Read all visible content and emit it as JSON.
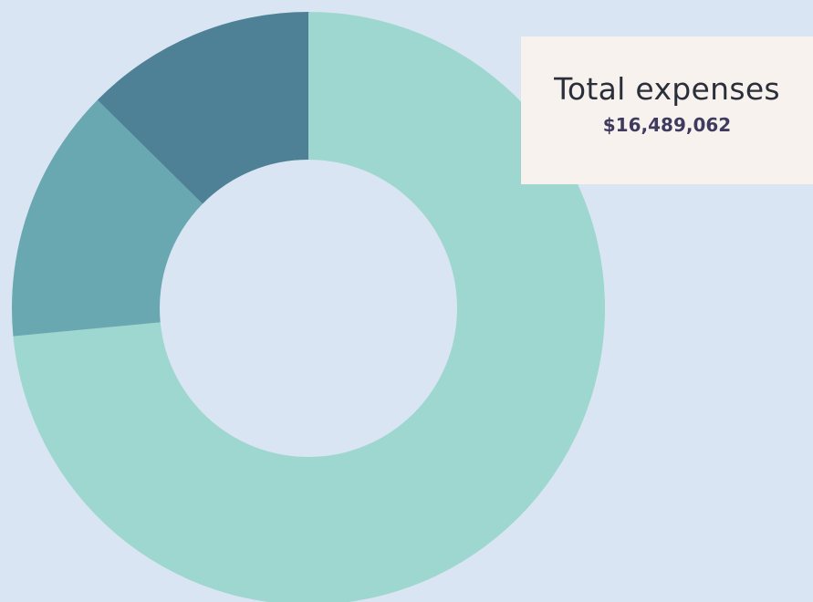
{
  "chart_data": {
    "type": "pie",
    "donut": true,
    "slices": [
      {
        "value": 73.5,
        "color": "#9dd7cf"
      },
      {
        "value": 13.9,
        "color": "#6aa8b1"
      },
      {
        "value": 12.6,
        "color": "#4e8196"
      }
    ],
    "start_angle_deg": 0,
    "direction": "clockwise"
  },
  "tooltip": {
    "label": "Total expenses",
    "value": "$16,489,062"
  }
}
